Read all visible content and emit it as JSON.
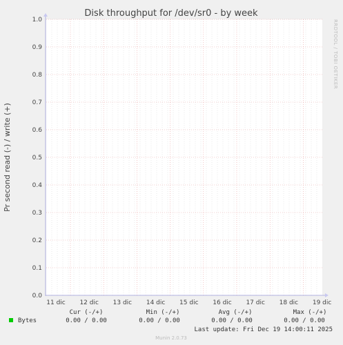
{
  "chart_data": {
    "type": "line",
    "title": "Disk throughput for /dev/sr0 - by week",
    "ylabel": "Pr second read (-) / write (+)",
    "xlabel": "",
    "ylim": [
      0,
      1.0
    ],
    "y_ticks": [
      "0.0",
      "0.1",
      "0.2",
      "0.3",
      "0.4",
      "0.5",
      "0.6",
      "0.7",
      "0.8",
      "0.9",
      "1.0"
    ],
    "categories": [
      "11 dic",
      "12 dic",
      "13 dic",
      "14 dic",
      "15 dic",
      "16 dic",
      "17 dic",
      "18 dic",
      "19 dic"
    ],
    "series": [
      {
        "name": "Bytes",
        "color": "#00cc00",
        "values": [
          0,
          0,
          0,
          0,
          0,
          0,
          0,
          0,
          0
        ]
      }
    ],
    "grid": true,
    "legend_position": "bottom-left"
  },
  "side_text": "RRDTOOL / TOBI OETIKER",
  "legend": {
    "headers": {
      "cur": "Cur (-/+)",
      "min": "Min (-/+)",
      "avg": "Avg (-/+)",
      "max": "Max (-/+)"
    },
    "rows": [
      {
        "name": "Bytes",
        "color": "#00cc00",
        "cur": "0.00 /  0.00",
        "min": "0.00 /  0.00",
        "avg": "0.00 /  0.00",
        "max": "0.00 /  0.00"
      }
    ]
  },
  "last_update": "Last update: Fri Dec 19 14:00:11 2025",
  "footer": "Munin 2.0.73",
  "colors": {
    "canvas": "#f0f0f0",
    "plot": "#ffffff",
    "major_grid": "#e8a0a0",
    "minor_grid": "#dddddd",
    "axis": "#b0b0e0"
  }
}
